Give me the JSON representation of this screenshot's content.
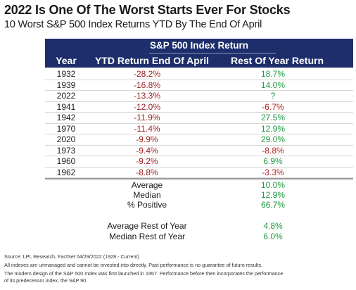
{
  "title": "2022 Is One Of The Worst Starts Ever For Stocks",
  "subtitle": "10 Worst S&P 500 Index Returns YTD By The End Of April",
  "table": {
    "group_header": "S&P 500 Index Return",
    "columns": [
      "Year",
      "YTD Return End Of April",
      "Rest Of Year Return"
    ],
    "rows": [
      {
        "year": "1932",
        "ytd": "-28.2%",
        "rest": "18.7%"
      },
      {
        "year": "1939",
        "ytd": "-16.8%",
        "rest": "14.0%"
      },
      {
        "year": "2022",
        "ytd": "-13.3%",
        "rest": "?"
      },
      {
        "year": "1941",
        "ytd": "-12.0%",
        "rest": "-6.7%"
      },
      {
        "year": "1942",
        "ytd": "-11.9%",
        "rest": "27.5%"
      },
      {
        "year": "1970",
        "ytd": "-11.4%",
        "rest": "12.9%"
      },
      {
        "year": "2020",
        "ytd": "-9.9%",
        "rest": "29.0%"
      },
      {
        "year": "1973",
        "ytd": "-9.4%",
        "rest": "-8.8%"
      },
      {
        "year": "1960",
        "ytd": "-9.2%",
        "rest": "6.9%"
      },
      {
        "year": "1962",
        "ytd": "-8.8%",
        "rest": "-3.3%"
      }
    ],
    "summary": [
      {
        "label": "Average",
        "value": "10.0%"
      },
      {
        "label": "Median",
        "value": "12.9%"
      },
      {
        "label": "% Positive",
        "value": "66.7%"
      }
    ],
    "summary2": [
      {
        "label": "Average Rest of Year",
        "value": "4.8%"
      },
      {
        "label": "Median Rest of Year",
        "value": "6.0%"
      }
    ]
  },
  "footnotes": [
    "Source: LPL Research, FactSet 04/29/2022 (1928 - Current)",
    "All indexes are unmanaged and cannot be invested into directly. Past performance is no guarantee of future results.",
    "The modern design of the S&P 500 Index was first launched in 1957. Performance before then incorporates the performance",
    "of its predecessor index, the S&P 90."
  ]
}
